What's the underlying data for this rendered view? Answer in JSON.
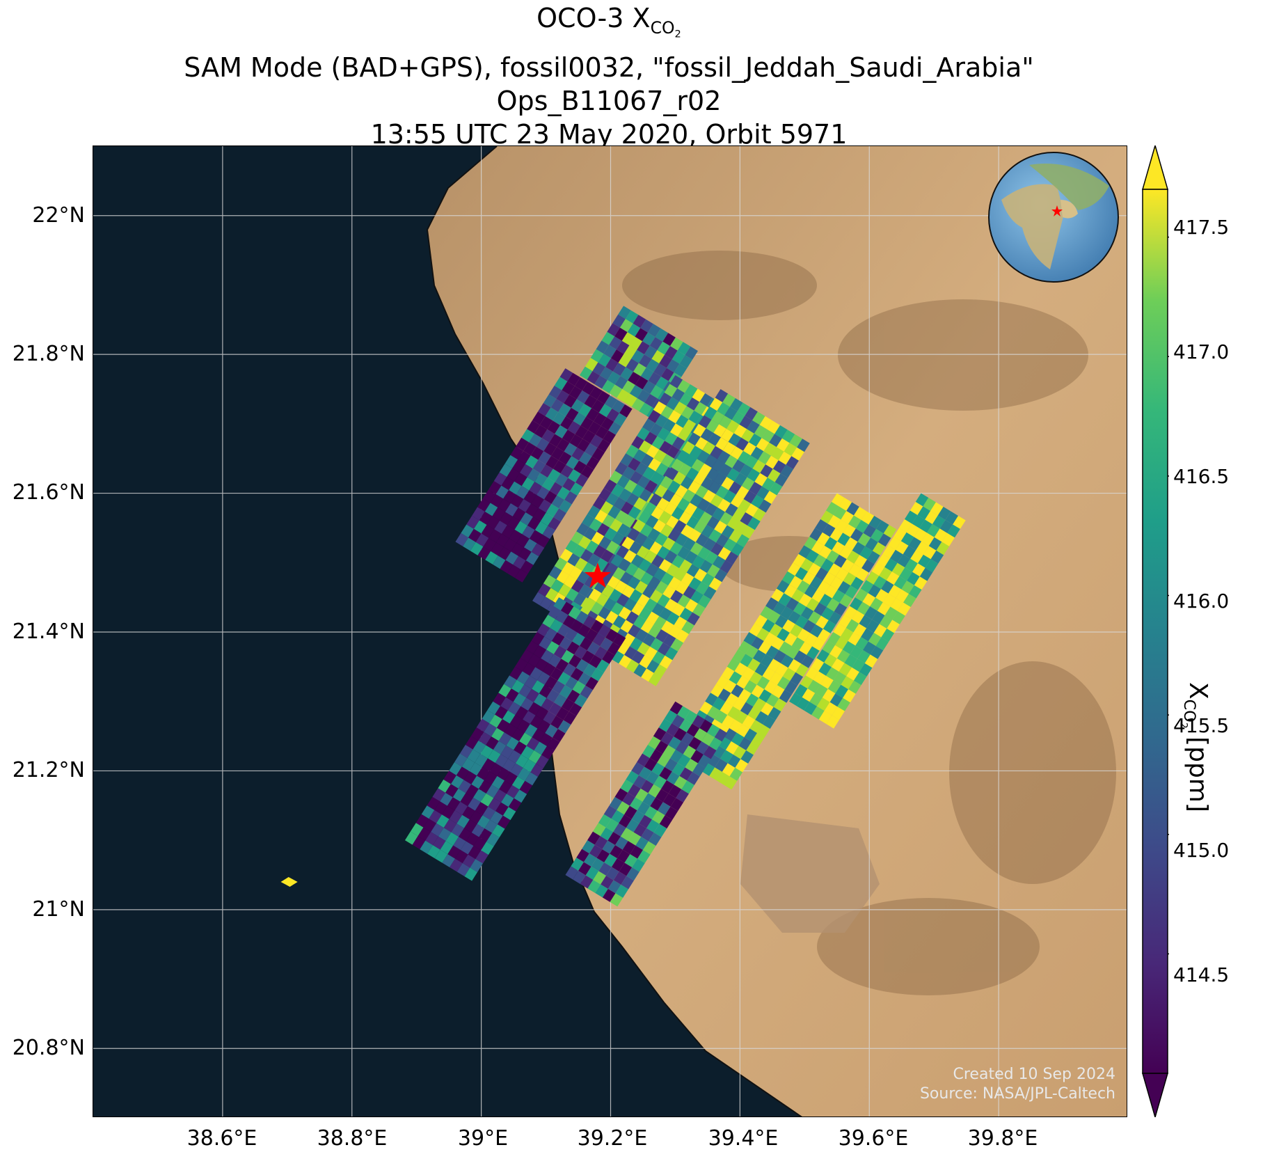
{
  "title": {
    "line1_prefix": "OCO-3 X",
    "line1_sub": "CO",
    "line1_subsub": "2",
    "line2": "SAM Mode (BAD+GPS), fossil0032, \"fossil_Jeddah_Saudi_Arabia\"",
    "line3": "Ops_B11067_r02",
    "line4": "13:55 UTC 23 May 2020, Orbit 5971"
  },
  "map": {
    "lat_ticks": [
      "22°N",
      "21.8°N",
      "21.6°N",
      "21.4°N",
      "21.2°N",
      "21°N",
      "20.8°N"
    ],
    "lon_ticks": [
      "38.6°E",
      "38.8°E",
      "39°E",
      "39.2°E",
      "39.4°E",
      "39.6°E",
      "39.8°E"
    ],
    "extent": {
      "lon_min": 38.4,
      "lon_max": 40.0,
      "lat_min": 20.7,
      "lat_max": 22.1
    },
    "target_marker": {
      "lon": 39.18,
      "lat": 21.48,
      "color": "#ff0000",
      "icon": "red-star-icon"
    },
    "inset_globe": {
      "icon": "globe-inset-icon",
      "marker_color": "#ff0000"
    },
    "credit_line1": "Created 10 Sep 2024",
    "credit_line2": "Source: NASA/JPL-Caltech"
  },
  "colorbar": {
    "colormap": "viridis",
    "range": [
      414.0,
      417.7
    ],
    "ticks": [
      "417.5",
      "417.0",
      "416.5",
      "416.0",
      "415.5",
      "415.0",
      "414.5"
    ],
    "label_prefix": "X",
    "label_sub": "CO",
    "label_subsub": "2",
    "label_suffix": " [ppm]",
    "extend": "both"
  },
  "colors": {
    "sea": "#0c1e2c",
    "land": "#cfa77a",
    "gridline": "#d9d9d9",
    "star": "#ff0000"
  }
}
